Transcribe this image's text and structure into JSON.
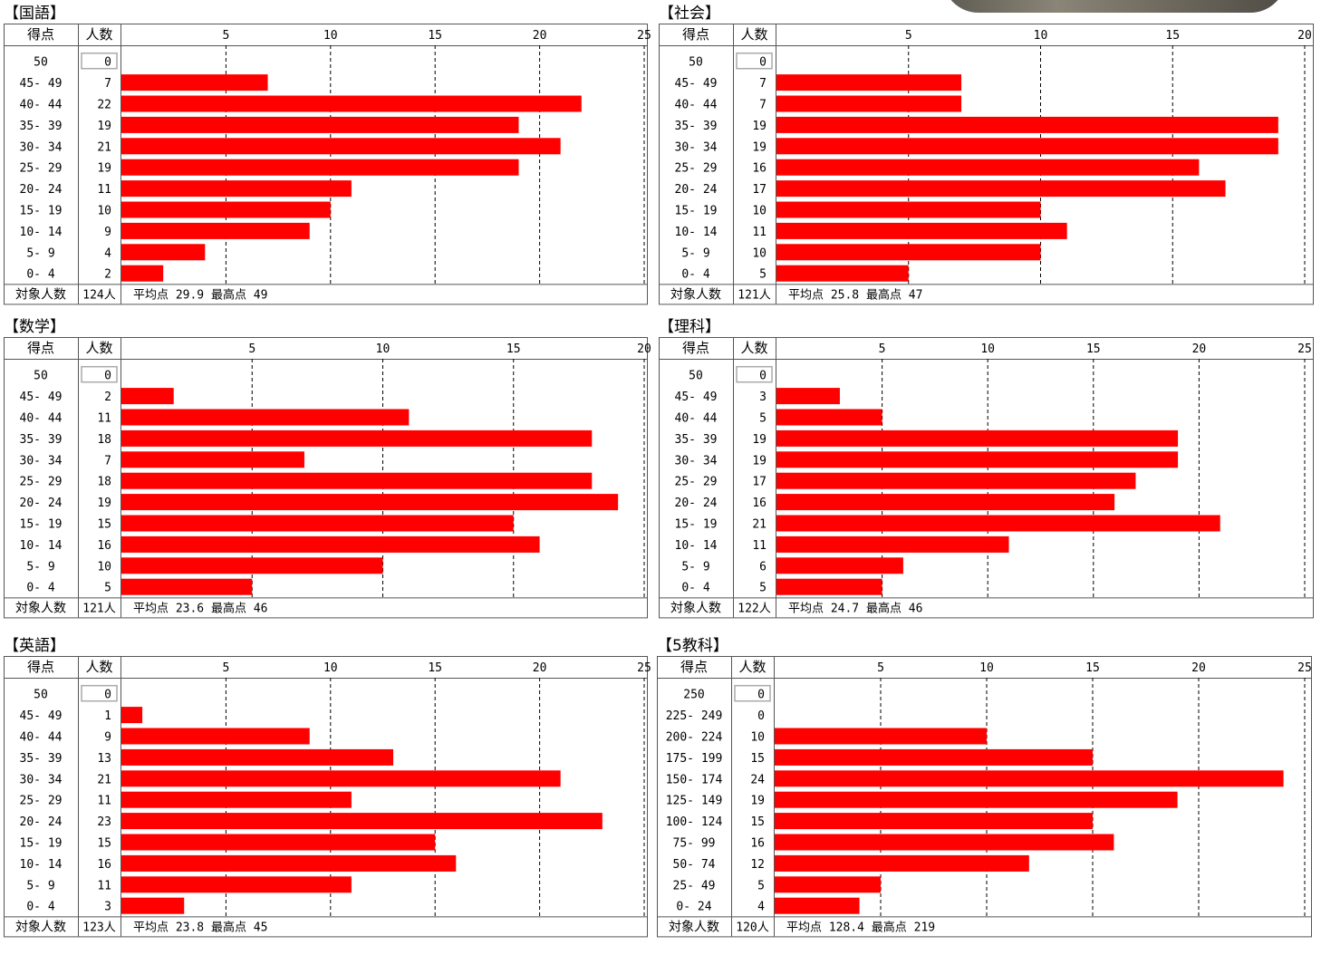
{
  "labels": {
    "score_header": "得点",
    "count_header": "人数",
    "total_label": "対象人数",
    "avg_label": "平均点",
    "max_label": "最高点"
  },
  "colors": {
    "bar": "#ff0000",
    "border": "#555555",
    "grid": "#000000"
  },
  "chart_data": [
    {
      "type": "bar",
      "title": "【国語】",
      "categories": [
        "50",
        "45- 49",
        "40- 44",
        "35- 39",
        "30- 34",
        "25- 29",
        "20- 24",
        "15- 19",
        "10- 14",
        "5- 9",
        "0- 4"
      ],
      "values": [
        0,
        7,
        22,
        19,
        21,
        19,
        11,
        10,
        9,
        4,
        2
      ],
      "xlim": [
        0,
        25
      ],
      "xticks": [
        5,
        10,
        15,
        20,
        25
      ],
      "total": "124人",
      "average": "29.9",
      "max": "49",
      "orientation": "horizontal",
      "grid": true
    },
    {
      "type": "bar",
      "title": "【社会】",
      "categories": [
        "50",
        "45- 49",
        "40- 44",
        "35- 39",
        "30- 34",
        "25- 29",
        "20- 24",
        "15- 19",
        "10- 14",
        "5- 9",
        "0- 4"
      ],
      "values": [
        0,
        7,
        7,
        19,
        19,
        16,
        17,
        10,
        11,
        10,
        5
      ],
      "xlim": [
        0,
        20
      ],
      "xticks": [
        5,
        10,
        15,
        20
      ],
      "total": "121人",
      "average": "25.8",
      "max": "47",
      "orientation": "horizontal",
      "grid": true
    },
    {
      "type": "bar",
      "title": "【数学】",
      "categories": [
        "50",
        "45- 49",
        "40- 44",
        "35- 39",
        "30- 34",
        "25- 29",
        "20- 24",
        "15- 19",
        "10- 14",
        "5- 9",
        "0- 4"
      ],
      "values": [
        0,
        2,
        11,
        18,
        7,
        18,
        19,
        15,
        16,
        10,
        5
      ],
      "xlim": [
        0,
        20
      ],
      "xticks": [
        5,
        10,
        15,
        20
      ],
      "total": "121人",
      "average": "23.6",
      "max": "46",
      "orientation": "horizontal",
      "grid": true
    },
    {
      "type": "bar",
      "title": "【理科】",
      "categories": [
        "50",
        "45- 49",
        "40- 44",
        "35- 39",
        "30- 34",
        "25- 29",
        "20- 24",
        "15- 19",
        "10- 14",
        "5- 9",
        "0- 4"
      ],
      "values": [
        0,
        3,
        5,
        19,
        19,
        17,
        16,
        21,
        11,
        6,
        5
      ],
      "xlim": [
        0,
        25
      ],
      "xticks": [
        5,
        10,
        15,
        20,
        25
      ],
      "total": "122人",
      "average": "24.7",
      "max": "46",
      "orientation": "horizontal",
      "grid": true
    },
    {
      "type": "bar",
      "title": "【英語】",
      "categories": [
        "50",
        "45- 49",
        "40- 44",
        "35- 39",
        "30- 34",
        "25- 29",
        "20- 24",
        "15- 19",
        "10- 14",
        "5- 9",
        "0- 4"
      ],
      "values": [
        0,
        1,
        9,
        13,
        21,
        11,
        23,
        15,
        16,
        11,
        3
      ],
      "xlim": [
        0,
        25
      ],
      "xticks": [
        5,
        10,
        15,
        20,
        25
      ],
      "total": "123人",
      "average": "23.8",
      "max": "45",
      "orientation": "horizontal",
      "grid": true
    },
    {
      "type": "bar",
      "title": "【5教科】",
      "categories": [
        "250",
        "225- 249",
        "200- 224",
        "175- 199",
        "150- 174",
        "125- 149",
        "100- 124",
        "75- 99",
        "50- 74",
        "25- 49",
        "0- 24"
      ],
      "values": [
        0,
        0,
        10,
        15,
        24,
        19,
        15,
        16,
        12,
        5,
        4
      ],
      "xlim": [
        0,
        25
      ],
      "xticks": [
        5,
        10,
        15,
        20,
        25
      ],
      "total": "120人",
      "average": "128.4",
      "max": "219",
      "orientation": "horizontal",
      "grid": true
    }
  ]
}
